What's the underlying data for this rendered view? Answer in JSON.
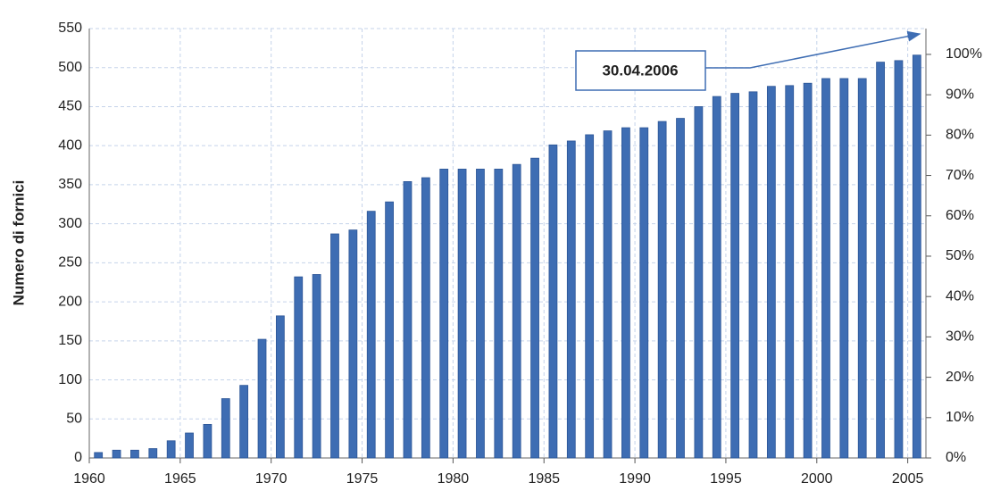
{
  "chart_data": {
    "type": "bar",
    "ylabel": "Numero di fornici",
    "annotation": "30.04.2006",
    "color": "#3e6db3",
    "grid": true,
    "x": [
      1960.5,
      1961.5,
      1962.5,
      1963.5,
      1964.5,
      1965.5,
      1966.5,
      1967.5,
      1968.5,
      1969.5,
      1970.5,
      1971.5,
      1972.5,
      1973.5,
      1974.5,
      1975.5,
      1976.5,
      1977.5,
      1978.5,
      1979.5,
      1980.5,
      1981.5,
      1982.5,
      1983.5,
      1984.5,
      1985.5,
      1986.5,
      1987.5,
      1988.5,
      1989.5,
      1990.5,
      1991.5,
      1992.5,
      1993.5,
      1994.5,
      1995.5,
      1996.5,
      1997.5,
      1998.5,
      1999.5,
      2000.5,
      2001.5,
      2002.5,
      2003.5,
      2004.5,
      2005.5
    ],
    "values": [
      7,
      10,
      10,
      12,
      22,
      32,
      43,
      76,
      93,
      152,
      182,
      232,
      235,
      287,
      292,
      316,
      328,
      354,
      359,
      370,
      370,
      370,
      370,
      376,
      384,
      401,
      406,
      414,
      419,
      423,
      423,
      431,
      435,
      450,
      463,
      467,
      469,
      476,
      477,
      480,
      486,
      486,
      486,
      507,
      509,
      516
    ],
    "xlim": [
      1960,
      2006
    ],
    "xticks": [
      1960,
      1965,
      1970,
      1975,
      1980,
      1985,
      1990,
      1995,
      2000,
      2005
    ],
    "ylim": [
      0,
      550
    ],
    "yticks": [
      0,
      50,
      100,
      150,
      200,
      250,
      300,
      350,
      400,
      450,
      500,
      550
    ],
    "y2lim": [
      0,
      106.4
    ],
    "y2ticks": [
      {
        "value": 0,
        "label": "0%"
      },
      {
        "value": 10,
        "label": "10%"
      },
      {
        "value": 20,
        "label": "20%"
      },
      {
        "value": 30,
        "label": "30%"
      },
      {
        "value": 40,
        "label": "40%"
      },
      {
        "value": 50,
        "label": "50%"
      },
      {
        "value": 60,
        "label": "60%"
      },
      {
        "value": 70,
        "label": "70%"
      },
      {
        "value": 80,
        "label": "80%"
      },
      {
        "value": 90,
        "label": "90%"
      },
      {
        "value": 100,
        "label": "100%"
      }
    ]
  }
}
